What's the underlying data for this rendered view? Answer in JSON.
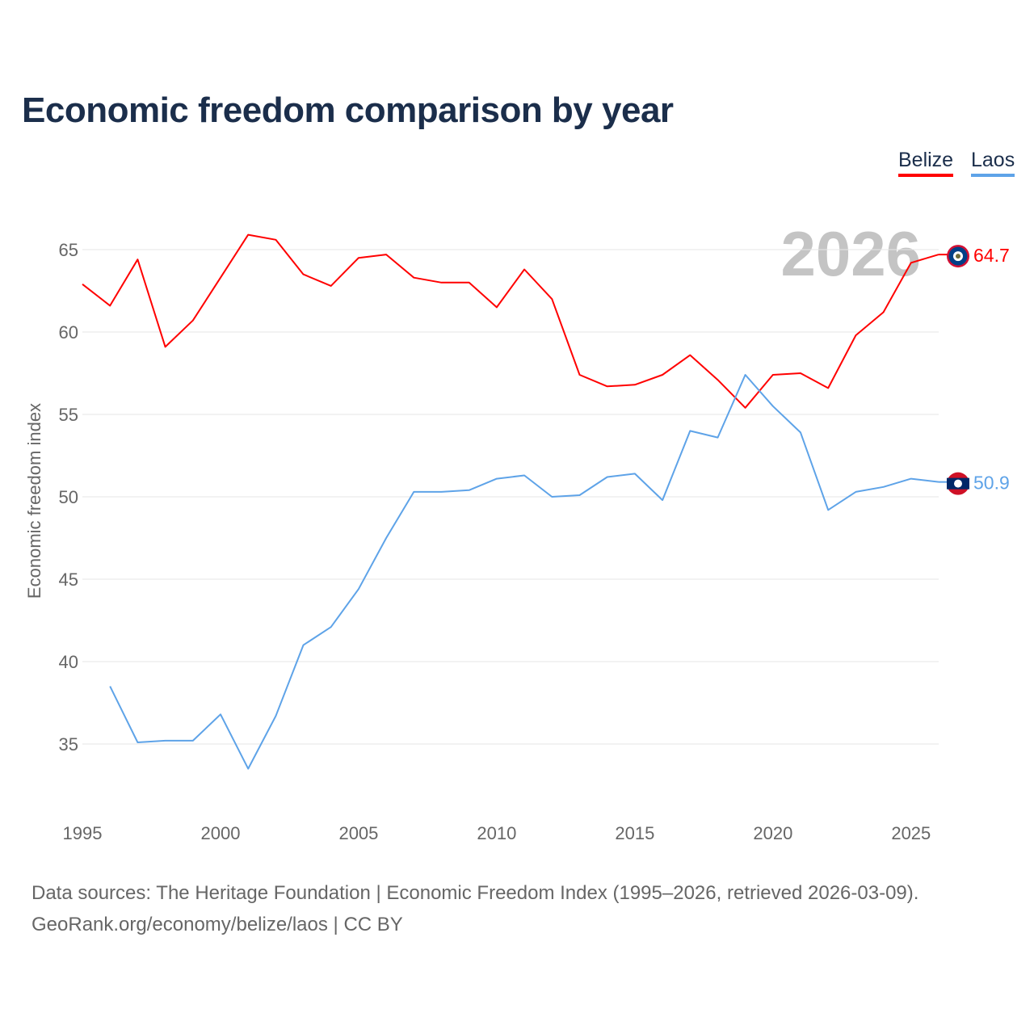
{
  "title": "Economic freedom comparison by year",
  "legend": [
    {
      "label": "Belize",
      "color": "#ff0000"
    },
    {
      "label": "Laos",
      "color": "#5ea3e8"
    }
  ],
  "watermark_year": "2026",
  "footer": {
    "line1": "Data sources: The Heritage Foundation | Economic Freedom Index (1995–2026, retrieved 2026-03-09).",
    "line2": "GeoRank.org/economy/belize/laos | CC BY"
  },
  "chart_data": {
    "type": "line",
    "title": "Economic freedom comparison by year",
    "xlabel": "",
    "ylabel": "Economic freedom index",
    "xlim": [
      1995,
      2026
    ],
    "ylim": [
      31,
      67
    ],
    "xticks": [
      1995,
      2000,
      2005,
      2010,
      2015,
      2020,
      2025
    ],
    "yticks": [
      35,
      40,
      45,
      50,
      55,
      60,
      65
    ],
    "grid": true,
    "legend_position": "top-right",
    "series": [
      {
        "name": "Belize",
        "color": "#ff0000",
        "end_label": "64.7",
        "x": [
          1995,
          1996,
          1997,
          1998,
          1999,
          2000,
          2001,
          2002,
          2003,
          2004,
          2005,
          2006,
          2007,
          2008,
          2009,
          2010,
          2011,
          2012,
          2013,
          2014,
          2015,
          2016,
          2017,
          2018,
          2019,
          2020,
          2021,
          2022,
          2023,
          2024,
          2025,
          2026
        ],
        "values": [
          62.9,
          61.6,
          64.4,
          59.1,
          60.7,
          63.3,
          65.9,
          65.6,
          63.5,
          62.8,
          64.5,
          64.7,
          63.3,
          63.0,
          63.0,
          61.5,
          63.8,
          62.0,
          57.4,
          56.7,
          56.8,
          57.4,
          58.6,
          57.1,
          55.4,
          57.4,
          57.5,
          56.6,
          59.8,
          61.2,
          64.2,
          64.7
        ]
      },
      {
        "name": "Laos",
        "color": "#5ea3e8",
        "end_label": "50.9",
        "x": [
          1996,
          1997,
          1998,
          1999,
          2000,
          2001,
          2002,
          2003,
          2004,
          2005,
          2006,
          2007,
          2008,
          2009,
          2010,
          2011,
          2012,
          2013,
          2014,
          2015,
          2016,
          2017,
          2018,
          2019,
          2020,
          2021,
          2022,
          2023,
          2024,
          2025,
          2026
        ],
        "values": [
          38.5,
          35.1,
          35.2,
          35.2,
          36.8,
          33.5,
          36.7,
          41.0,
          42.1,
          44.4,
          47.5,
          50.3,
          50.3,
          50.4,
          51.1,
          51.3,
          50.0,
          50.1,
          51.2,
          51.4,
          49.8,
          54.0,
          53.6,
          57.4,
          55.5,
          53.9,
          49.2,
          50.3,
          50.6,
          51.1,
          50.9
        ]
      }
    ]
  }
}
